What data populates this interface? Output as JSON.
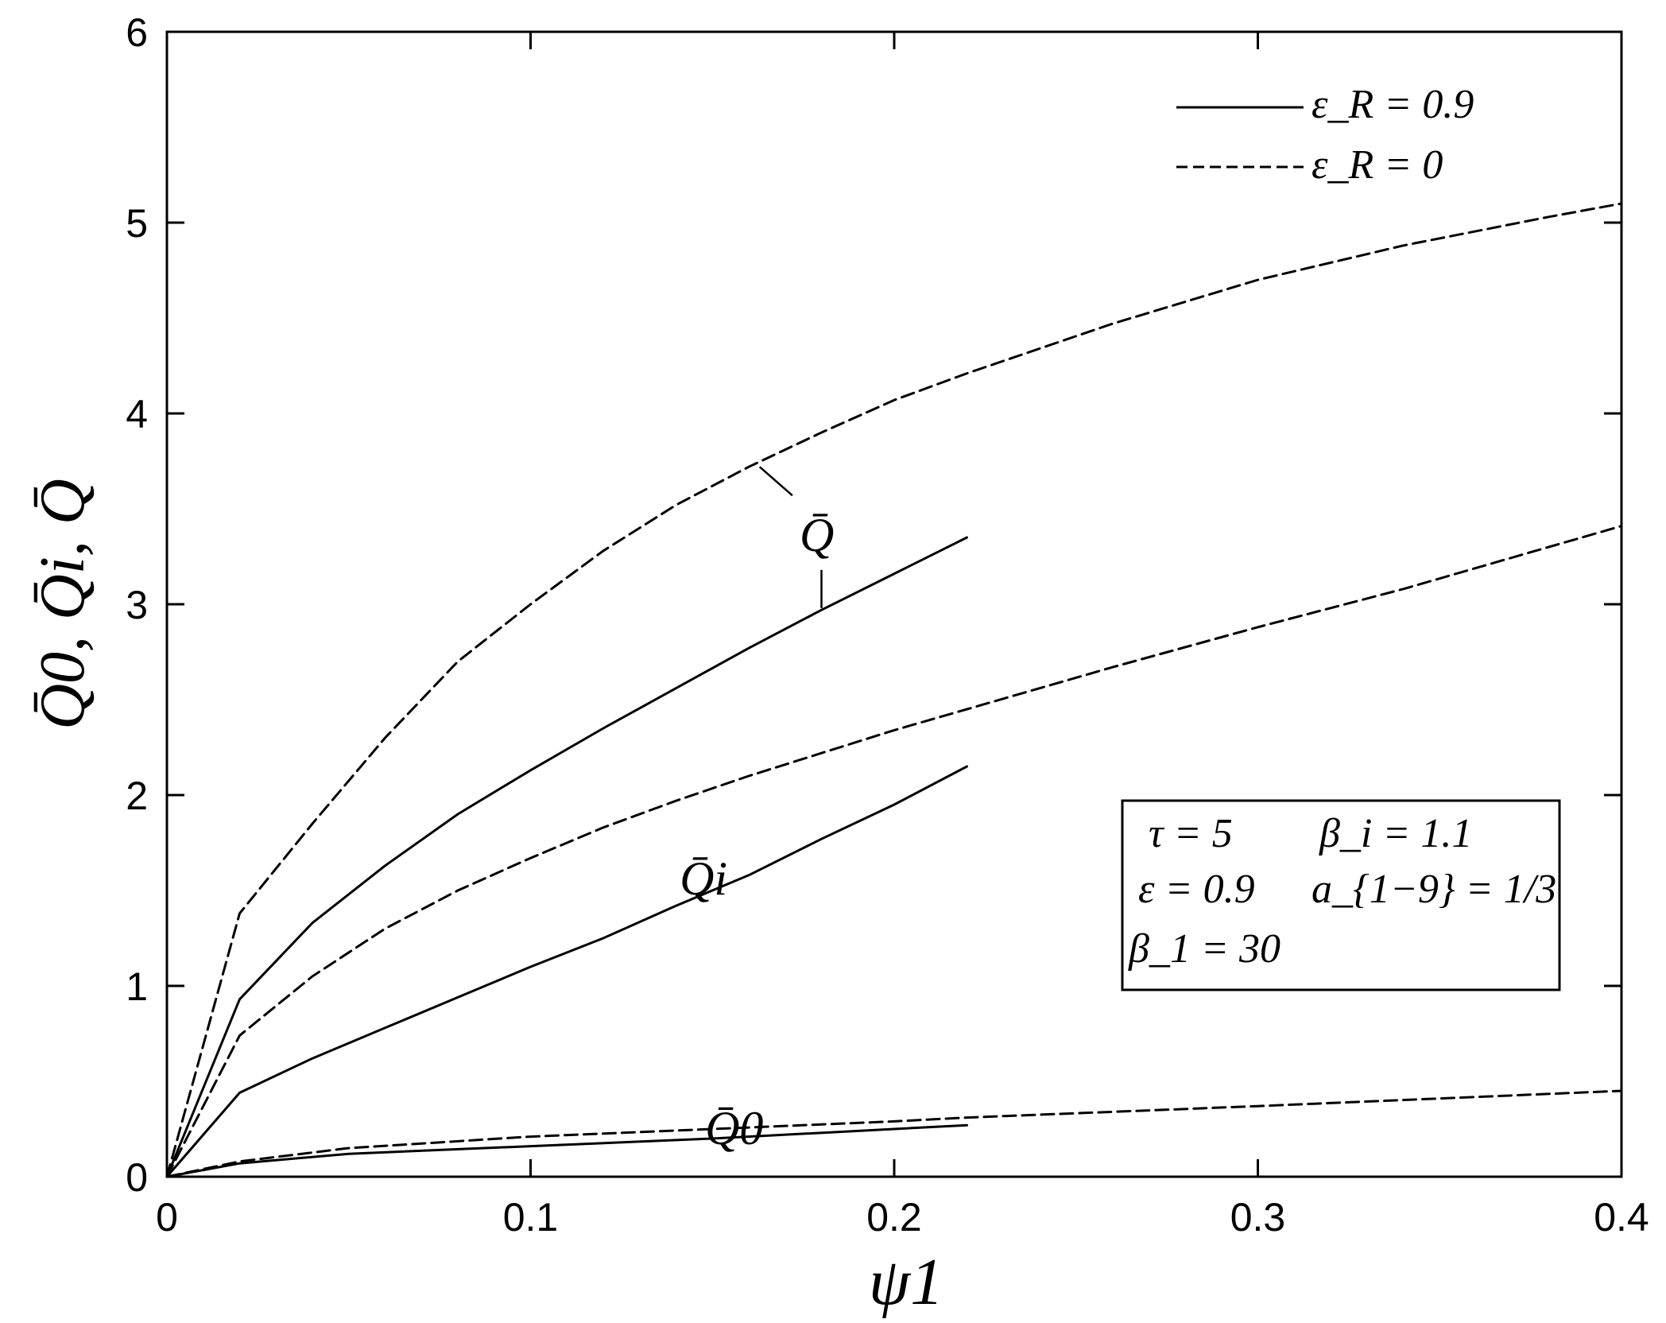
{
  "chart_data": {
    "type": "line",
    "xlabel": "ψ1",
    "ylabel": "Q̄0, Q̄i, Q̄",
    "xlim": [
      0,
      0.4
    ],
    "ylim": [
      0,
      6
    ],
    "x_ticks": [
      "0",
      "0.1",
      "0.2",
      "0.3",
      "0.4"
    ],
    "y_ticks": [
      "0",
      "1",
      "2",
      "3",
      "4",
      "5",
      "6"
    ],
    "legend": {
      "placement": "top-right",
      "entries": [
        {
          "style": "solid",
          "label": "ε_R = 0.9"
        },
        {
          "style": "dashed",
          "label": "ε_R = 0"
        }
      ]
    },
    "parameters_box": {
      "placement": "right",
      "lines": [
        [
          "τ = 5",
          "β_i = 1.1"
        ],
        [
          "ε = 0.9",
          "a_{1−9} = 1/3"
        ],
        [
          "β_1 = 30"
        ]
      ]
    },
    "curve_labels": {
      "q": "Q̄",
      "qi": "Q̄i",
      "q0": "Q̄0"
    },
    "series": [
      {
        "curve": "Q",
        "style": "dashed",
        "x": [
          0,
          0.02,
          0.04,
          0.06,
          0.08,
          0.1,
          0.12,
          0.14,
          0.16,
          0.18,
          0.2,
          0.22,
          0.26,
          0.3,
          0.34,
          0.38,
          0.4
        ],
        "y": [
          0,
          1.38,
          1.85,
          2.3,
          2.7,
          3.0,
          3.28,
          3.52,
          3.72,
          3.9,
          4.07,
          4.21,
          4.47,
          4.7,
          4.88,
          5.03,
          5.1
        ]
      },
      {
        "curve": "Q",
        "style": "solid",
        "x": [
          0,
          0.02,
          0.04,
          0.06,
          0.08,
          0.1,
          0.12,
          0.14,
          0.16,
          0.18,
          0.2,
          0.22
        ],
        "y": [
          0,
          0.93,
          1.33,
          1.63,
          1.9,
          2.13,
          2.35,
          2.56,
          2.77,
          2.97,
          3.16,
          3.35
        ]
      },
      {
        "curve": "Qi",
        "style": "dashed",
        "x": [
          0,
          0.02,
          0.04,
          0.06,
          0.08,
          0.1,
          0.12,
          0.14,
          0.16,
          0.2,
          0.22,
          0.26,
          0.3,
          0.34,
          0.38,
          0.4
        ],
        "y": [
          0,
          0.74,
          1.05,
          1.3,
          1.5,
          1.67,
          1.83,
          1.97,
          2.1,
          2.34,
          2.45,
          2.67,
          2.88,
          3.08,
          3.3,
          3.41
        ]
      },
      {
        "curve": "Qi",
        "style": "solid",
        "x": [
          0,
          0.02,
          0.04,
          0.06,
          0.08,
          0.1,
          0.12,
          0.14,
          0.16,
          0.18,
          0.2,
          0.22
        ],
        "y": [
          0,
          0.44,
          0.62,
          0.78,
          0.94,
          1.1,
          1.25,
          1.42,
          1.58,
          1.77,
          1.95,
          2.15
        ]
      },
      {
        "curve": "Q0",
        "style": "dashed",
        "x": [
          0,
          0.02,
          0.05,
          0.1,
          0.15,
          0.2,
          0.22,
          0.3,
          0.4
        ],
        "y": [
          0,
          0.08,
          0.15,
          0.21,
          0.25,
          0.29,
          0.31,
          0.37,
          0.45
        ]
      },
      {
        "curve": "Q0",
        "style": "solid",
        "x": [
          0,
          0.02,
          0.05,
          0.1,
          0.15,
          0.2,
          0.22
        ],
        "y": [
          0,
          0.07,
          0.12,
          0.16,
          0.2,
          0.25,
          0.27
        ]
      }
    ]
  }
}
